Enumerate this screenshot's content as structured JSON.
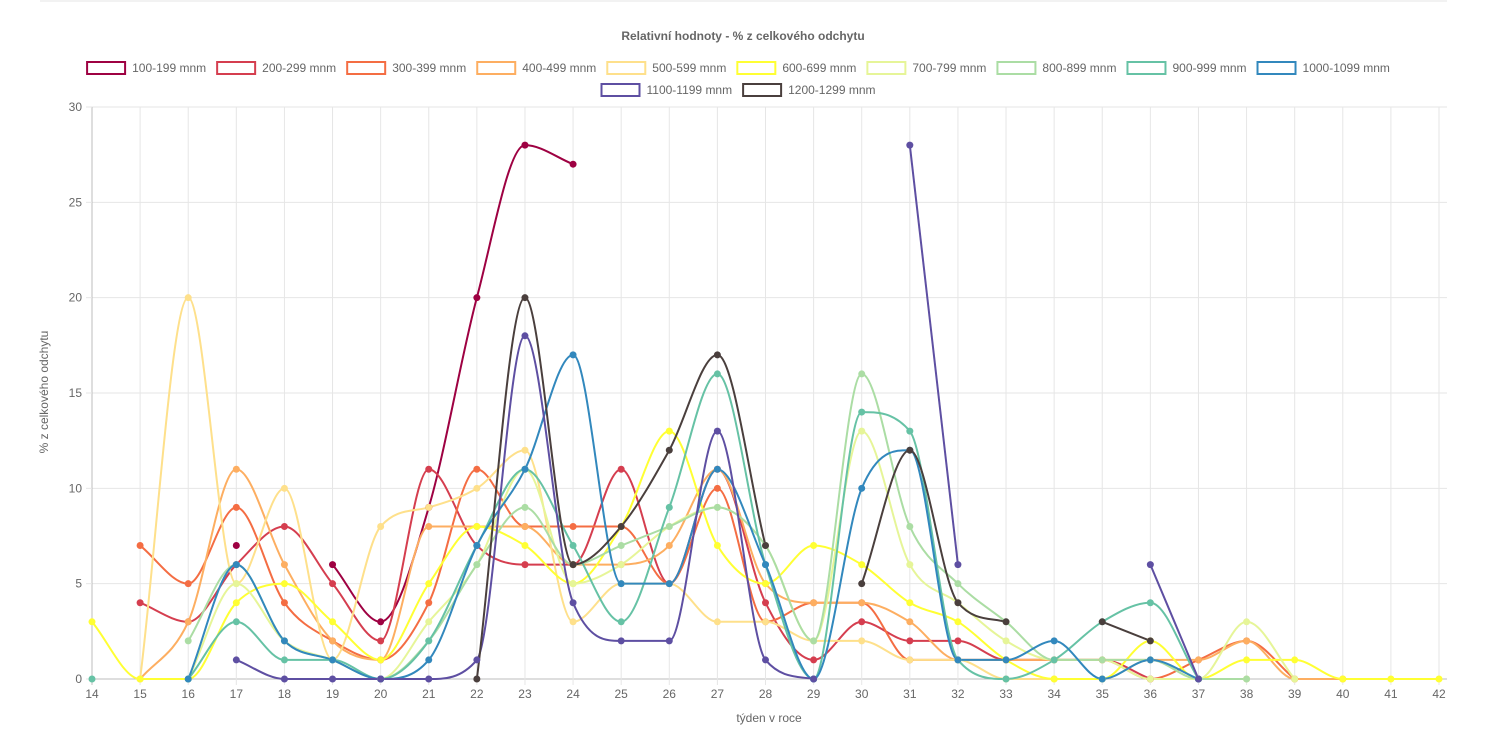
{
  "chart_data": {
    "type": "line",
    "title": "Relativní hodnoty - % z celkového odchytu",
    "xlabel": "týden v roce",
    "ylabel": "% z celkového odchytu",
    "x": [
      14,
      15,
      16,
      17,
      18,
      19,
      20,
      21,
      22,
      23,
      24,
      25,
      26,
      27,
      28,
      29,
      30,
      31,
      32,
      33,
      34,
      35,
      36,
      37,
      38,
      39,
      40,
      41,
      42
    ],
    "ylim": [
      0,
      30
    ],
    "yticks": [
      0,
      5,
      10,
      15,
      20,
      25,
      30
    ],
    "legend_position": "top",
    "series": [
      {
        "name": "100-199 mnm",
        "color": "#9e0142",
        "values": [
          null,
          null,
          null,
          7,
          null,
          6,
          3,
          9,
          20,
          28,
          27,
          null,
          null,
          null,
          null,
          null,
          null,
          null,
          null,
          null,
          null,
          null,
          null,
          null,
          null,
          null,
          null,
          null,
          null
        ]
      },
      {
        "name": "200-299 mnm",
        "color": "#d53e4f",
        "values": [
          null,
          4,
          3,
          6,
          8,
          5,
          2,
          11,
          7,
          6,
          6,
          11,
          5,
          11,
          4,
          1,
          3,
          2,
          2,
          1,
          1,
          1,
          0,
          null,
          null,
          null,
          null,
          null,
          null
        ]
      },
      {
        "name": "300-399 mnm",
        "color": "#f46d43",
        "values": [
          null,
          7,
          5,
          9,
          4,
          2,
          1,
          4,
          11,
          8,
          8,
          8,
          5,
          10,
          3,
          4,
          4,
          1,
          1,
          1,
          1,
          1,
          0,
          1,
          2,
          0,
          null,
          null,
          null
        ]
      },
      {
        "name": "400-499 mnm",
        "color": "#fdae61",
        "values": [
          null,
          0,
          3,
          11,
          6,
          2,
          1,
          8,
          8,
          8,
          6,
          6,
          7,
          11,
          5,
          4,
          4,
          3,
          1,
          1,
          1,
          1,
          1,
          1,
          2,
          0,
          0,
          null,
          null
        ]
      },
      {
        "name": "500-599 mnm",
        "color": "#fee08b",
        "values": [
          null,
          0,
          20,
          5,
          10,
          1,
          8,
          9,
          10,
          12,
          3,
          5,
          5,
          3,
          3,
          2,
          2,
          1,
          1,
          0,
          0,
          0,
          1,
          0,
          0,
          null,
          null,
          null,
          null
        ]
      },
      {
        "name": "600-699 mnm",
        "color": "#ffff33",
        "values": [
          3,
          0,
          0,
          4,
          5,
          3,
          1,
          5,
          8,
          7,
          5,
          8,
          13,
          7,
          5,
          7,
          6,
          4,
          3,
          1,
          0,
          0,
          2,
          0,
          1,
          1,
          0,
          0,
          0
        ]
      },
      {
        "name": "700-799 mnm",
        "color": "#e6f598",
        "values": [
          null,
          null,
          0,
          5,
          2,
          1,
          0,
          3,
          6,
          11,
          5,
          6,
          8,
          9,
          7,
          2,
          13,
          6,
          4,
          2,
          1,
          1,
          0,
          0,
          3,
          0,
          null,
          null,
          null
        ]
      },
      {
        "name": "800-899 mnm",
        "color": "#abdda4",
        "values": [
          null,
          null,
          2,
          6,
          2,
          1,
          0,
          2,
          6,
          9,
          6,
          7,
          8,
          9,
          7,
          2,
          16,
          8,
          5,
          3,
          1,
          1,
          1,
          0,
          0,
          null,
          null,
          null,
          null
        ]
      },
      {
        "name": "900-999 mnm",
        "color": "#66c2a5",
        "values": [
          0,
          null,
          0,
          3,
          1,
          1,
          0,
          2,
          7,
          11,
          7,
          3,
          9,
          16,
          6,
          0,
          14,
          13,
          1,
          0,
          1,
          3,
          4,
          0,
          null,
          null,
          null,
          null,
          null
        ]
      },
      {
        "name": "1000-1099 mnm",
        "color": "#3288bd",
        "values": [
          null,
          null,
          0,
          6,
          2,
          1,
          0,
          1,
          7,
          11,
          17,
          5,
          5,
          11,
          6,
          0,
          10,
          12,
          1,
          1,
          2,
          0,
          1,
          0,
          null,
          null,
          null,
          null,
          null
        ]
      },
      {
        "name": "1100-1199 mnm",
        "color": "#5e4fa2",
        "values": [
          null,
          null,
          null,
          1,
          0,
          0,
          0,
          0,
          1,
          18,
          4,
          2,
          2,
          13,
          1,
          0,
          null,
          28,
          6,
          null,
          null,
          null,
          6,
          0,
          null,
          null,
          null,
          null,
          null
        ]
      },
      {
        "name": "1200-1299 mnm",
        "color": "#4a3f3d",
        "values": [
          null,
          null,
          null,
          null,
          null,
          null,
          null,
          null,
          0,
          20,
          6,
          8,
          12,
          17,
          7,
          null,
          5,
          12,
          4,
          3,
          null,
          3,
          2,
          null,
          null,
          null,
          null,
          null,
          null
        ]
      }
    ]
  }
}
